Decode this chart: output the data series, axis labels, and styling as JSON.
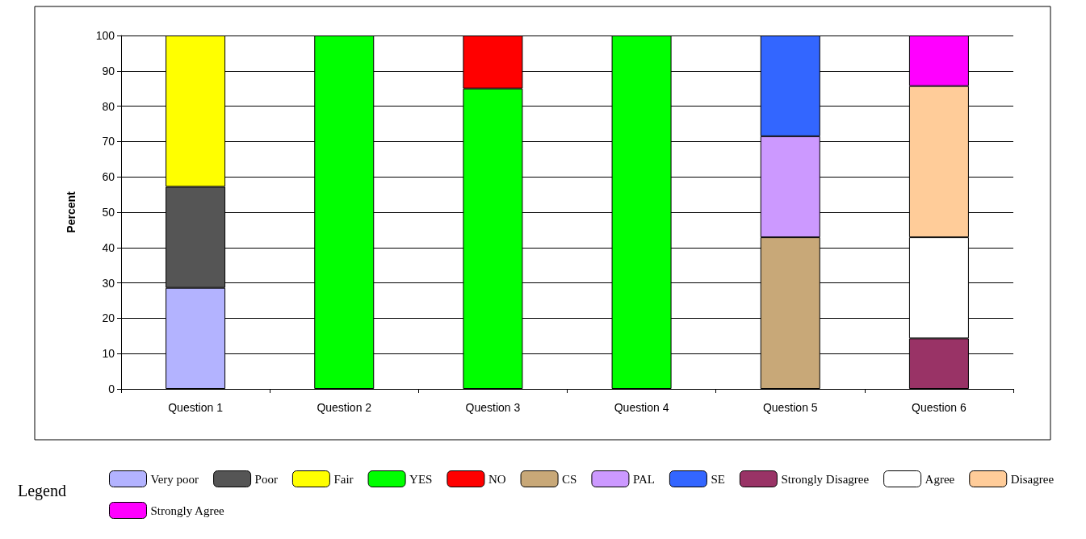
{
  "chart_data": {
    "type": "bar",
    "stacked": true,
    "ylabel": "Percent",
    "legend_title": "Legend",
    "categories": [
      "Question 1",
      "Question 2",
      "Question 3",
      "Question 4",
      "Question 5",
      "Question 6"
    ],
    "ylim": [
      0,
      100
    ],
    "yticks": [
      0,
      10,
      20,
      30,
      40,
      50,
      60,
      70,
      80,
      90,
      100
    ],
    "grid": "y",
    "legend": "bottom",
    "series": [
      {
        "name": "Very poor",
        "color": "#b3b3ff",
        "values": [
          28.6,
          null,
          null,
          null,
          null,
          null
        ]
      },
      {
        "name": "Poor",
        "color": "#555555",
        "values": [
          28.6,
          null,
          null,
          null,
          null,
          null
        ]
      },
      {
        "name": "Fair",
        "color": "#ffff00",
        "values": [
          42.8,
          null,
          null,
          null,
          null,
          null
        ]
      },
      {
        "name": "YES",
        "color": "#00ff00",
        "values": [
          null,
          100,
          85,
          100,
          null,
          null
        ]
      },
      {
        "name": "NO",
        "color": "#ff0000",
        "values": [
          null,
          null,
          15,
          null,
          null,
          null
        ]
      },
      {
        "name": "CS",
        "color": "#c8a878",
        "values": [
          null,
          null,
          null,
          null,
          42.9,
          null
        ]
      },
      {
        "name": "PAL",
        "color": "#cc99ff",
        "values": [
          null,
          null,
          null,
          null,
          28.6,
          null
        ]
      },
      {
        "name": "SE",
        "color": "#3366ff",
        "values": [
          null,
          null,
          null,
          null,
          28.5,
          null
        ]
      },
      {
        "name": "Strongly Disagree",
        "color": "#993366",
        "values": [
          null,
          null,
          null,
          null,
          null,
          14.3
        ]
      },
      {
        "name": "Agree",
        "color": "#ffffff",
        "values": [
          null,
          null,
          null,
          null,
          null,
          28.6
        ]
      },
      {
        "name": "Disagree",
        "color": "#ffcc99",
        "values": [
          null,
          null,
          null,
          null,
          null,
          42.8
        ]
      },
      {
        "name": "Strongly Agree",
        "color": "#ff00ff",
        "values": [
          null,
          null,
          null,
          null,
          null,
          14.3
        ]
      }
    ]
  }
}
